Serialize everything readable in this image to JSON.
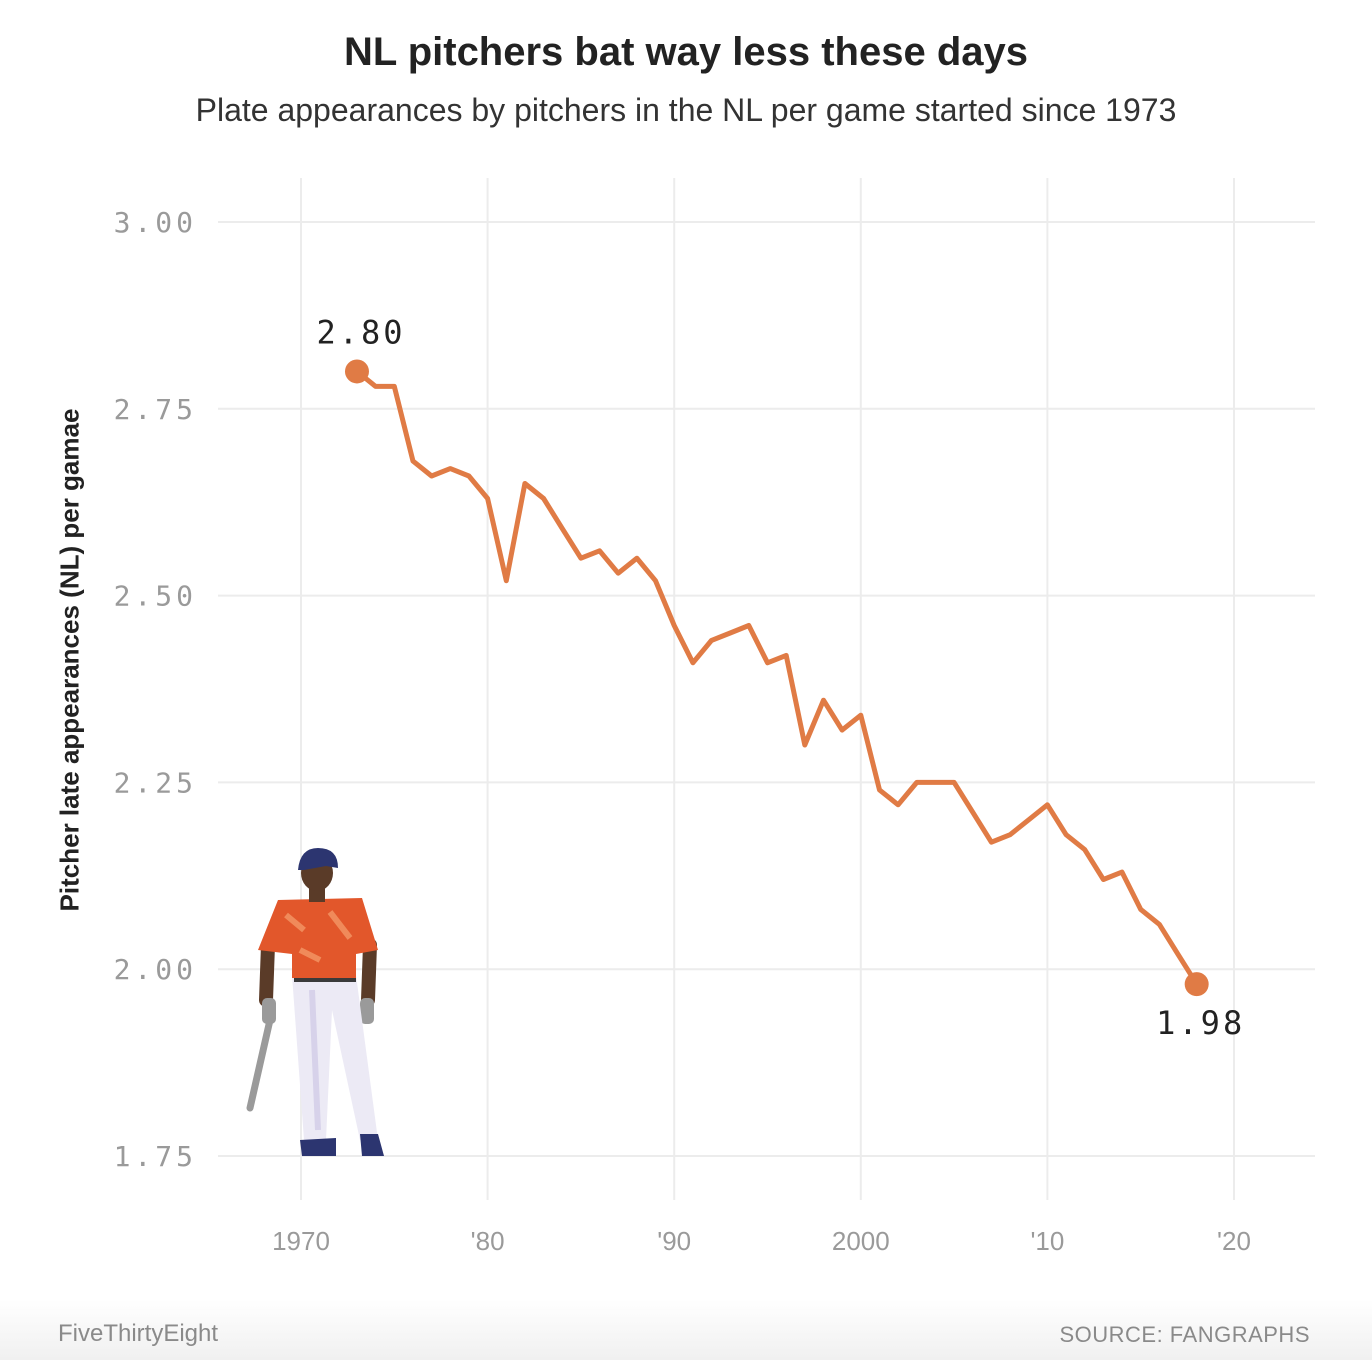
{
  "header": {
    "title": "NL pitchers bat way less these days",
    "subtitle": "Plate appearances by pitchers in the NL per game started since 1973"
  },
  "footer": {
    "brand": "FiveThirtyEight",
    "source": "SOURCE: FANGRAPHS"
  },
  "illustration": {
    "icon": "baseball-batter-illustration",
    "jersey_color": "#e2572b",
    "helmet_color": "#2c3570"
  },
  "chart_data": {
    "type": "line",
    "title": "NL pitchers bat way less these days",
    "subtitle": "Plate appearances by pitchers in the NL per game started since 1973",
    "ylabel": "Pitcher late appearances (NL) per gamae",
    "xlabel": "",
    "ylim": [
      1.75,
      3.0
    ],
    "xlim": [
      1967,
      2022
    ],
    "y_ticks": [
      {
        "value": 3.0,
        "label": "3.00"
      },
      {
        "value": 2.75,
        "label": "2.75"
      },
      {
        "value": 2.5,
        "label": "2.50"
      },
      {
        "value": 2.25,
        "label": "2.25"
      },
      {
        "value": 2.0,
        "label": "2.00"
      },
      {
        "value": 1.75,
        "label": "1.75"
      }
    ],
    "x_ticks": [
      {
        "value": 1970,
        "label": "1970"
      },
      {
        "value": 1980,
        "label": "'80"
      },
      {
        "value": 1990,
        "label": "'90"
      },
      {
        "value": 2000,
        "label": "2000"
      },
      {
        "value": 2010,
        "label": "'10"
      },
      {
        "value": 2020,
        "label": "'20"
      }
    ],
    "grid": true,
    "series": [
      {
        "color": "#e07b45",
        "x": [
          1973,
          1974,
          1975,
          1976,
          1977,
          1978,
          1979,
          1980,
          1981,
          1982,
          1983,
          1984,
          1985,
          1986,
          1987,
          1988,
          1989,
          1990,
          1991,
          1992,
          1993,
          1994,
          1995,
          1996,
          1997,
          1998,
          1999,
          2000,
          2001,
          2002,
          2003,
          2004,
          2005,
          2006,
          2007,
          2008,
          2009,
          2010,
          2011,
          2012,
          2013,
          2014,
          2015,
          2016,
          2017,
          2018
        ],
        "y": [
          2.8,
          2.78,
          2.78,
          2.68,
          2.66,
          2.67,
          2.66,
          2.63,
          2.52,
          2.65,
          2.63,
          2.59,
          2.55,
          2.56,
          2.53,
          2.55,
          2.52,
          2.46,
          2.41,
          2.44,
          2.45,
          2.46,
          2.41,
          2.42,
          2.3,
          2.36,
          2.32,
          2.34,
          2.24,
          2.22,
          2.25,
          2.25,
          2.25,
          2.21,
          2.17,
          2.18,
          2.2,
          2.22,
          2.18,
          2.16,
          2.12,
          2.13,
          2.08,
          2.06,
          2.02,
          1.98
        ]
      }
    ],
    "annotations": [
      {
        "x": 1973,
        "y": 2.8,
        "label": "2.80",
        "position": "above"
      },
      {
        "x": 2018,
        "y": 1.98,
        "label": "1.98",
        "position": "below"
      }
    ]
  }
}
